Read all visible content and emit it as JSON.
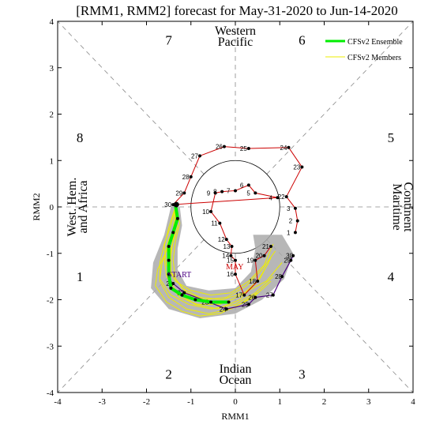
{
  "chart_data": {
    "type": "line",
    "title": "[RMM1, RMM2] forecast for May-31-2020 to Jun-14-2020",
    "xlabel": "RMM1",
    "ylabel": "RMM2",
    "xlim": [
      -4,
      4
    ],
    "ylim": [
      -4,
      4
    ],
    "x_ticks": [
      "-4",
      "-3",
      "-2",
      "-1",
      "0",
      "1",
      "2",
      "3",
      "4"
    ],
    "y_ticks": [
      "-4",
      "-3",
      "-2",
      "-1",
      "0",
      "1",
      "2",
      "3",
      "4"
    ],
    "grid": false,
    "legend_position": "top-right",
    "phase_numbers": [
      {
        "label": "1",
        "x": -3.5,
        "y": -1.5
      },
      {
        "label": "2",
        "x": -1.5,
        "y": -3.6
      },
      {
        "label": "3",
        "x": 1.5,
        "y": -3.6
      },
      {
        "label": "4",
        "x": 3.5,
        "y": -1.5
      },
      {
        "label": "5",
        "x": 3.5,
        "y": 1.5
      },
      {
        "label": "6",
        "x": 1.5,
        "y": 3.6
      },
      {
        "label": "7",
        "x": -1.5,
        "y": 3.6
      },
      {
        "label": "8",
        "x": -3.5,
        "y": 1.5
      }
    ],
    "regions": {
      "top": [
        "Western",
        "Pacific"
      ],
      "bottom": [
        "Indian",
        "Ocean"
      ],
      "left": [
        "West. Hem.",
        "and Africa"
      ],
      "right": [
        "Maritime",
        "Continent"
      ]
    },
    "annotations": {
      "start": "START",
      "may": "MAY"
    },
    "observed": {
      "name": "",
      "color": "#cc0000",
      "points": [
        {
          "day": "1",
          "x": 1.35,
          "y": -0.55
        },
        {
          "day": "2",
          "x": 1.4,
          "y": -0.3
        },
        {
          "day": "3",
          "x": 1.35,
          "y": -0.03
        },
        {
          "day": "22",
          "x": 1.15,
          "y": 0.22
        },
        {
          "day": "23",
          "x": 1.5,
          "y": 0.86
        },
        {
          "day": "24",
          "x": 1.2,
          "y": 1.28
        },
        {
          "day": "25",
          "x": 0.3,
          "y": 1.26
        },
        {
          "day": "26",
          "x": -0.25,
          "y": 1.3
        },
        {
          "day": "27",
          "x": -0.8,
          "y": 1.1
        },
        {
          "day": "28",
          "x": -1.0,
          "y": 0.65
        },
        {
          "day": "29",
          "x": -1.15,
          "y": 0.3
        },
        {
          "day": "30",
          "x": -1.4,
          "y": 0.05
        },
        {
          "day": "4",
          "x": 0.95,
          "y": 0.2
        },
        {
          "day": "5",
          "x": 0.45,
          "y": 0.3
        },
        {
          "day": "6",
          "x": 0.3,
          "y": 0.47
        },
        {
          "day": "7",
          "x": 0.0,
          "y": 0.35
        },
        {
          "day": "8",
          "x": -0.3,
          "y": 0.33
        },
        {
          "day": "9",
          "x": -0.45,
          "y": 0.3
        },
        {
          "day": "10",
          "x": -0.55,
          "y": -0.1
        },
        {
          "day": "11",
          "x": -0.35,
          "y": -0.35
        },
        {
          "day": "12",
          "x": -0.2,
          "y": -0.7
        },
        {
          "day": "13",
          "x": -0.08,
          "y": -0.85
        },
        {
          "day": "14",
          "x": -0.1,
          "y": -1.05
        },
        {
          "day": "15",
          "x": 0.0,
          "y": -1.15
        },
        {
          "day": "16",
          "x": 0.0,
          "y": -1.45
        },
        {
          "day": "17",
          "x": 0.2,
          "y": -1.9
        },
        {
          "day": "18",
          "x": 0.5,
          "y": -1.6
        },
        {
          "day": "19",
          "x": 0.45,
          "y": -1.15
        },
        {
          "day": "20",
          "x": 0.65,
          "y": -1.05
        },
        {
          "day": "21",
          "x": 0.8,
          "y": -0.85
        }
      ]
    },
    "forecast_path": {
      "color": "#4b0082",
      "points": [
        {
          "day": "30",
          "x": 1.3,
          "y": -1.05
        },
        {
          "day": "29",
          "x": 1.25,
          "y": -1.15
        },
        {
          "day": "28",
          "x": 1.05,
          "y": -1.5
        },
        {
          "day": "27",
          "x": 0.85,
          "y": -1.9
        },
        {
          "day": "26",
          "x": 0.45,
          "y": -1.95
        },
        {
          "day": "25",
          "x": 0.3,
          "y": -2.1
        },
        {
          "day": "24",
          "x": -0.2,
          "y": -2.2
        },
        {
          "day": "23",
          "x": -0.6,
          "y": -2.05
        },
        {
          "day": "22",
          "x": -1.15,
          "y": -1.85
        },
        {
          "day": "21",
          "x": -1.4,
          "y": -1.65
        }
      ]
    },
    "series": [
      {
        "name": "CFSv2 Ensemble",
        "color": "#00ee00",
        "points": [
          {
            "x": -1.35,
            "y": 0.05
          },
          {
            "x": -1.3,
            "y": -0.25
          },
          {
            "x": -1.4,
            "y": -0.55
          },
          {
            "x": -1.5,
            "y": -0.85
          },
          {
            "x": -1.5,
            "y": -1.15
          },
          {
            "x": -1.5,
            "y": -1.45
          },
          {
            "x": -1.45,
            "y": -1.75
          },
          {
            "x": -1.2,
            "y": -1.9
          },
          {
            "x": -0.9,
            "y": -2.0
          },
          {
            "x": -0.55,
            "y": -2.05
          },
          {
            "x": -0.15,
            "y": -2.05
          }
        ]
      },
      {
        "name": "CFSv2 Members",
        "color": "#eeee00",
        "members": [
          [
            [
              -1.35,
              0.0
            ],
            [
              -1.3,
              -0.3
            ],
            [
              -1.5,
              -0.7
            ],
            [
              -1.6,
              -1.1
            ],
            [
              -1.55,
              -1.5
            ],
            [
              -1.3,
              -1.85
            ],
            [
              -0.9,
              -2.1
            ],
            [
              -0.4,
              -2.2
            ],
            [
              0.1,
              -2.0
            ],
            [
              0.5,
              -1.6
            ],
            [
              0.75,
              -1.2
            ]
          ],
          [
            [
              -1.35,
              0.0
            ],
            [
              -1.45,
              -0.4
            ],
            [
              -1.6,
              -0.8
            ],
            [
              -1.7,
              -1.2
            ],
            [
              -1.7,
              -1.6
            ],
            [
              -1.5,
              -1.95
            ],
            [
              -1.1,
              -2.2
            ],
            [
              -0.6,
              -2.3
            ],
            [
              -0.1,
              -2.2
            ],
            [
              0.4,
              -1.95
            ],
            [
              0.8,
              -1.6
            ]
          ],
          [
            [
              -1.35,
              0.0
            ],
            [
              -1.25,
              -0.35
            ],
            [
              -1.35,
              -0.75
            ],
            [
              -1.4,
              -1.15
            ],
            [
              -1.35,
              -1.55
            ],
            [
              -1.1,
              -1.85
            ],
            [
              -0.7,
              -2.0
            ],
            [
              -0.2,
              -1.95
            ],
            [
              0.25,
              -1.7
            ],
            [
              0.6,
              -1.35
            ],
            [
              0.9,
              -0.95
            ]
          ],
          [
            [
              -1.35,
              0.0
            ],
            [
              -1.4,
              -0.5
            ],
            [
              -1.55,
              -0.95
            ],
            [
              -1.75,
              -1.35
            ],
            [
              -1.8,
              -1.7
            ],
            [
              -1.55,
              -2.05
            ],
            [
              -1.2,
              -2.25
            ],
            [
              -0.8,
              -2.35
            ],
            [
              -0.35,
              -2.3
            ],
            [
              0.1,
              -2.1
            ],
            [
              0.5,
              -1.85
            ]
          ],
          [
            [
              -1.35,
              0.0
            ],
            [
              -1.3,
              -0.45
            ],
            [
              -1.45,
              -0.9
            ],
            [
              -1.5,
              -1.3
            ],
            [
              -1.5,
              -1.65
            ],
            [
              -1.25,
              -1.95
            ],
            [
              -0.85,
              -2.1
            ],
            [
              -0.35,
              -2.1
            ],
            [
              0.15,
              -1.9
            ],
            [
              0.55,
              -1.55
            ],
            [
              0.8,
              -1.1
            ]
          ],
          [
            [
              -1.35,
              0.0
            ],
            [
              -1.5,
              -0.45
            ],
            [
              -1.6,
              -0.85
            ],
            [
              -1.55,
              -1.25
            ],
            [
              -1.35,
              -1.6
            ],
            [
              -1.0,
              -1.8
            ],
            [
              -0.55,
              -1.9
            ],
            [
              -0.1,
              -1.85
            ],
            [
              0.3,
              -1.6
            ],
            [
              0.65,
              -1.25
            ],
            [
              0.85,
              -0.8
            ]
          ],
          [
            [
              -1.35,
              0.0
            ],
            [
              -1.35,
              -0.4
            ],
            [
              -1.5,
              -0.8
            ],
            [
              -1.65,
              -1.2
            ],
            [
              -1.7,
              -1.55
            ],
            [
              -1.45,
              -1.9
            ],
            [
              -1.05,
              -2.1
            ],
            [
              -0.55,
              -2.2
            ],
            [
              0.0,
              -2.1
            ],
            [
              0.45,
              -1.85
            ],
            [
              0.85,
              -1.5
            ]
          ],
          [
            [
              -1.35,
              0.0
            ],
            [
              -1.3,
              -0.3
            ],
            [
              -1.4,
              -0.7
            ],
            [
              -1.45,
              -1.05
            ],
            [
              -1.45,
              -1.4
            ],
            [
              -1.2,
              -1.75
            ],
            [
              -0.8,
              -1.95
            ],
            [
              -0.3,
              -2.0
            ],
            [
              0.2,
              -1.85
            ],
            [
              0.7,
              -1.6
            ],
            [
              1.05,
              -1.2
            ]
          ]
        ]
      }
    ],
    "spread_band": {
      "color": "#aaaaaa",
      "upper": [
        [
          -1.45,
          0.0
        ],
        [
          -1.6,
          -0.6
        ],
        [
          -1.85,
          -1.2
        ],
        [
          -1.9,
          -1.75
        ],
        [
          -1.5,
          -2.2
        ],
        [
          -0.8,
          -2.4
        ],
        [
          0.0,
          -2.3
        ],
        [
          0.6,
          -2.0
        ],
        [
          1.1,
          -1.55
        ],
        [
          1.3,
          -1.0
        ],
        [
          1.05,
          -0.6
        ]
      ],
      "lower": [
        [
          -1.25,
          0.0
        ],
        [
          -1.2,
          -0.4
        ],
        [
          -1.3,
          -0.9
        ],
        [
          -1.3,
          -1.35
        ],
        [
          -1.1,
          -1.7
        ],
        [
          -0.6,
          -1.8
        ],
        [
          0.0,
          -1.75
        ],
        [
          0.35,
          -1.4
        ],
        [
          0.45,
          -0.9
        ],
        [
          0.4,
          -0.6
        ]
      ]
    },
    "legend": [
      {
        "label": "CFSv2 Ensemble",
        "color": "#00ee00"
      },
      {
        "label": "CFSv2 Members",
        "color": "#eeee00"
      }
    ]
  }
}
